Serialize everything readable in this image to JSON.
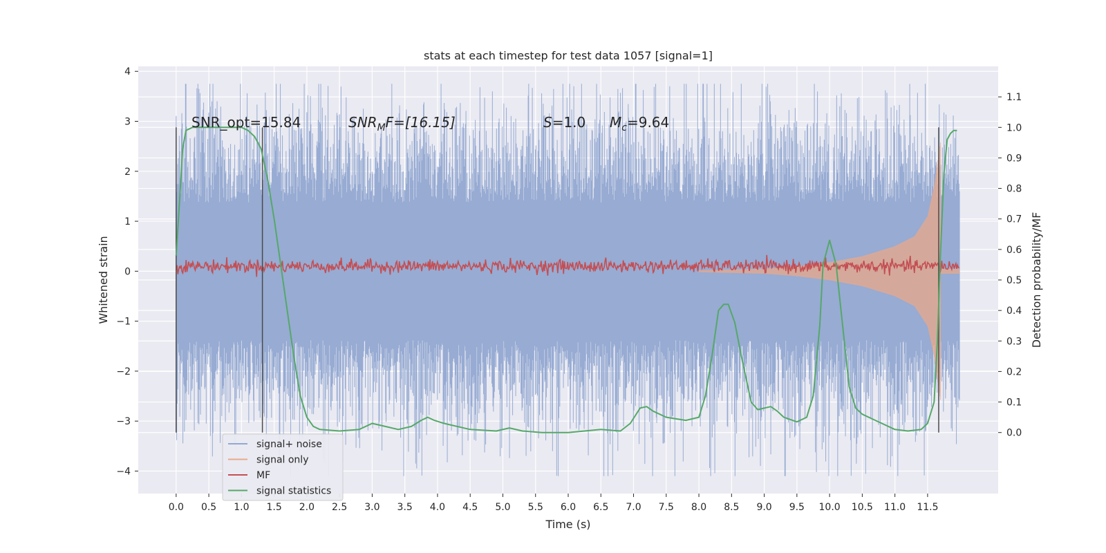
{
  "chart_data": {
    "type": "line",
    "title": "stats at each timestep for test data 1057 [signal=1]",
    "xlabel": "Time (s)",
    "ylabel": "Whitened strain",
    "ylabel_right": "Detection probability/MF",
    "xlim": [
      -0.58,
      12.58
    ],
    "ylim": [
      -4.45,
      4.1
    ],
    "ylim_right": [
      -0.2,
      1.2
    ],
    "x_ticks": [
      "0.0",
      "0.5",
      "1.0",
      "1.5",
      "2.0",
      "2.5",
      "3.0",
      "3.5",
      "4.0",
      "4.5",
      "5.0",
      "5.5",
      "6.0",
      "6.5",
      "7.0",
      "7.5",
      "8.0",
      "8.5",
      "9.0",
      "9.5",
      "10.0",
      "10.5",
      "11.0",
      "11.5"
    ],
    "y_ticks": [
      "−4",
      "−3",
      "−2",
      "−1",
      "0",
      "1",
      "2",
      "3",
      "4"
    ],
    "y_right_ticks": [
      "0.0",
      "0.1",
      "0.2",
      "0.3",
      "0.4",
      "0.5",
      "0.6",
      "0.7",
      "0.8",
      "0.9",
      "1.0",
      "1.1"
    ],
    "grid": true,
    "legend_position": "lower-left",
    "annotations": {
      "snr_opt": "SNR_opt=15.84",
      "snr_mf_sym": "SNR",
      "snr_mf_sub": "M",
      "snr_mf_rest": "F=[16.15]",
      "s_sym": "S",
      "s_rest": "=1.0",
      "mc_sym": "M",
      "mc_sub": "c",
      "mc_rest": "=9.64"
    },
    "vertical_lines_x": [
      0.0,
      1.32,
      11.67
    ],
    "series": [
      {
        "name": "signal+ noise",
        "color": "#92a8d1",
        "noise_envelope": 2.3,
        "x_range": [
          0.0,
          11.99
        ]
      },
      {
        "name": "signal only",
        "color": "#e8a88a",
        "x_range": [
          8.0,
          11.99
        ],
        "amplitude_x": [
          8.0,
          9.0,
          9.5,
          10.0,
          10.5,
          11.0,
          11.3,
          11.5,
          11.6,
          11.7
        ],
        "amplitude_y": [
          0.02,
          0.05,
          0.1,
          0.18,
          0.3,
          0.5,
          0.7,
          1.1,
          1.7,
          2.6
        ]
      },
      {
        "name": "MF",
        "color": "#c44e52",
        "center": 0.1,
        "amplitude": 0.07,
        "x_range": [
          0.0,
          11.99
        ]
      },
      {
        "name": "signal statistics",
        "color": "#55a868",
        "axis": "right",
        "x": [
          0.0,
          0.05,
          0.1,
          0.15,
          0.25,
          0.5,
          0.8,
          1.0,
          1.1,
          1.2,
          1.3,
          1.4,
          1.5,
          1.6,
          1.7,
          1.8,
          1.9,
          2.0,
          2.1,
          2.2,
          2.5,
          2.8,
          3.0,
          3.2,
          3.4,
          3.6,
          3.75,
          3.85,
          3.95,
          4.1,
          4.5,
          4.9,
          5.1,
          5.3,
          5.6,
          6.0,
          6.5,
          6.8,
          6.95,
          7.1,
          7.2,
          7.3,
          7.5,
          7.8,
          8.0,
          8.1,
          8.2,
          8.3,
          8.38,
          8.45,
          8.55,
          8.65,
          8.8,
          8.9,
          9.0,
          9.1,
          9.2,
          9.3,
          9.5,
          9.65,
          9.75,
          9.85,
          9.9,
          10.0,
          10.1,
          10.2,
          10.3,
          10.4,
          10.5,
          10.7,
          11.0,
          11.2,
          11.4,
          11.5,
          11.6,
          11.65,
          11.7,
          11.75,
          11.8,
          11.85,
          11.9,
          11.95
        ],
        "y": [
          0.58,
          0.75,
          0.93,
          0.99,
          1.0,
          1.0,
          1.0,
          1.0,
          0.99,
          0.97,
          0.93,
          0.83,
          0.7,
          0.55,
          0.4,
          0.25,
          0.12,
          0.05,
          0.02,
          0.01,
          0.005,
          0.01,
          0.03,
          0.02,
          0.01,
          0.02,
          0.04,
          0.05,
          0.04,
          0.03,
          0.01,
          0.005,
          0.015,
          0.005,
          0.0,
          0.0,
          0.01,
          0.005,
          0.03,
          0.08,
          0.085,
          0.07,
          0.05,
          0.04,
          0.05,
          0.12,
          0.25,
          0.4,
          0.42,
          0.42,
          0.36,
          0.25,
          0.1,
          0.075,
          0.08,
          0.085,
          0.07,
          0.05,
          0.035,
          0.05,
          0.12,
          0.35,
          0.55,
          0.63,
          0.55,
          0.35,
          0.15,
          0.08,
          0.06,
          0.04,
          0.01,
          0.005,
          0.01,
          0.03,
          0.1,
          0.3,
          0.6,
          0.85,
          0.96,
          0.98,
          0.99,
          0.99
        ]
      }
    ]
  }
}
